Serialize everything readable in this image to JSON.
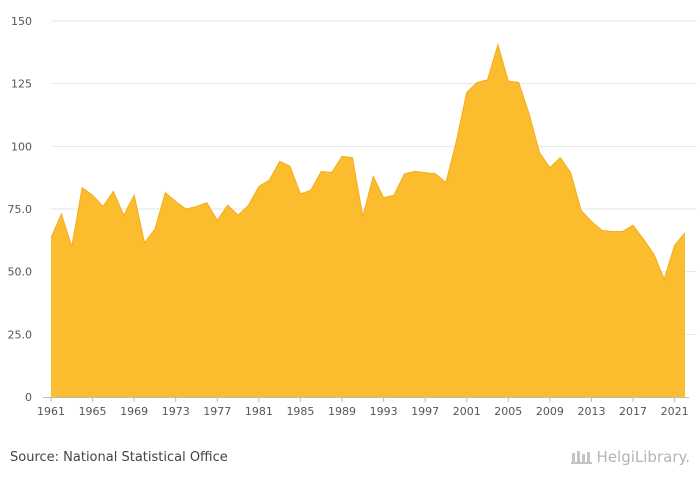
{
  "chart_data": {
    "type": "area",
    "title": "",
    "xlabel": "",
    "ylabel": "",
    "x": [
      1961,
      1962,
      1963,
      1964,
      1965,
      1966,
      1967,
      1968,
      1969,
      1970,
      1971,
      1972,
      1973,
      1974,
      1975,
      1976,
      1977,
      1978,
      1979,
      1980,
      1981,
      1982,
      1983,
      1984,
      1985,
      1986,
      1987,
      1988,
      1989,
      1990,
      1991,
      1992,
      1993,
      1994,
      1995,
      1996,
      1997,
      1998,
      1999,
      2000,
      2001,
      2002,
      2003,
      2004,
      2005,
      2006,
      2007,
      2008,
      2009,
      2010,
      2011,
      2012,
      2013,
      2014,
      2015,
      2016,
      2017,
      2018,
      2019,
      2020,
      2021,
      2022
    ],
    "values": [
      63.5,
      73,
      60,
      83.5,
      80.5,
      76,
      82,
      72.5,
      80.5,
      61.5,
      67,
      81.5,
      78,
      75,
      76,
      77.5,
      70.5,
      76.5,
      72.5,
      76.5,
      84,
      86.5,
      94,
      92,
      81,
      82.5,
      90,
      89.5,
      96,
      95.5,
      72,
      88,
      79.5,
      80.5,
      89,
      90,
      89.5,
      89,
      85.5,
      102,
      121.5,
      125.5,
      126.5,
      140.5,
      126,
      125.5,
      113,
      97.5,
      91.5,
      95.5,
      89.5,
      74.5,
      70,
      66.5,
      66,
      66,
      68.5,
      63,
      57,
      47,
      60.5,
      65.5
    ],
    "ylim": [
      0,
      150
    ],
    "yticks": [
      "0",
      "25.0",
      "50.0",
      "75.0",
      "100",
      "125",
      "150"
    ],
    "xticks": [
      "1961",
      "1965",
      "1969",
      "1973",
      "1977",
      "1981",
      "1985",
      "1989",
      "1993",
      "1997",
      "2001",
      "2005",
      "2009",
      "2013",
      "2017",
      "2021"
    ],
    "grid": true,
    "fill_color": "#fbbd2e",
    "line_color": "#f3ad1a"
  },
  "footer": {
    "source": "Source: National Statistical Office",
    "logo_text": "HelgiLibrary."
  }
}
